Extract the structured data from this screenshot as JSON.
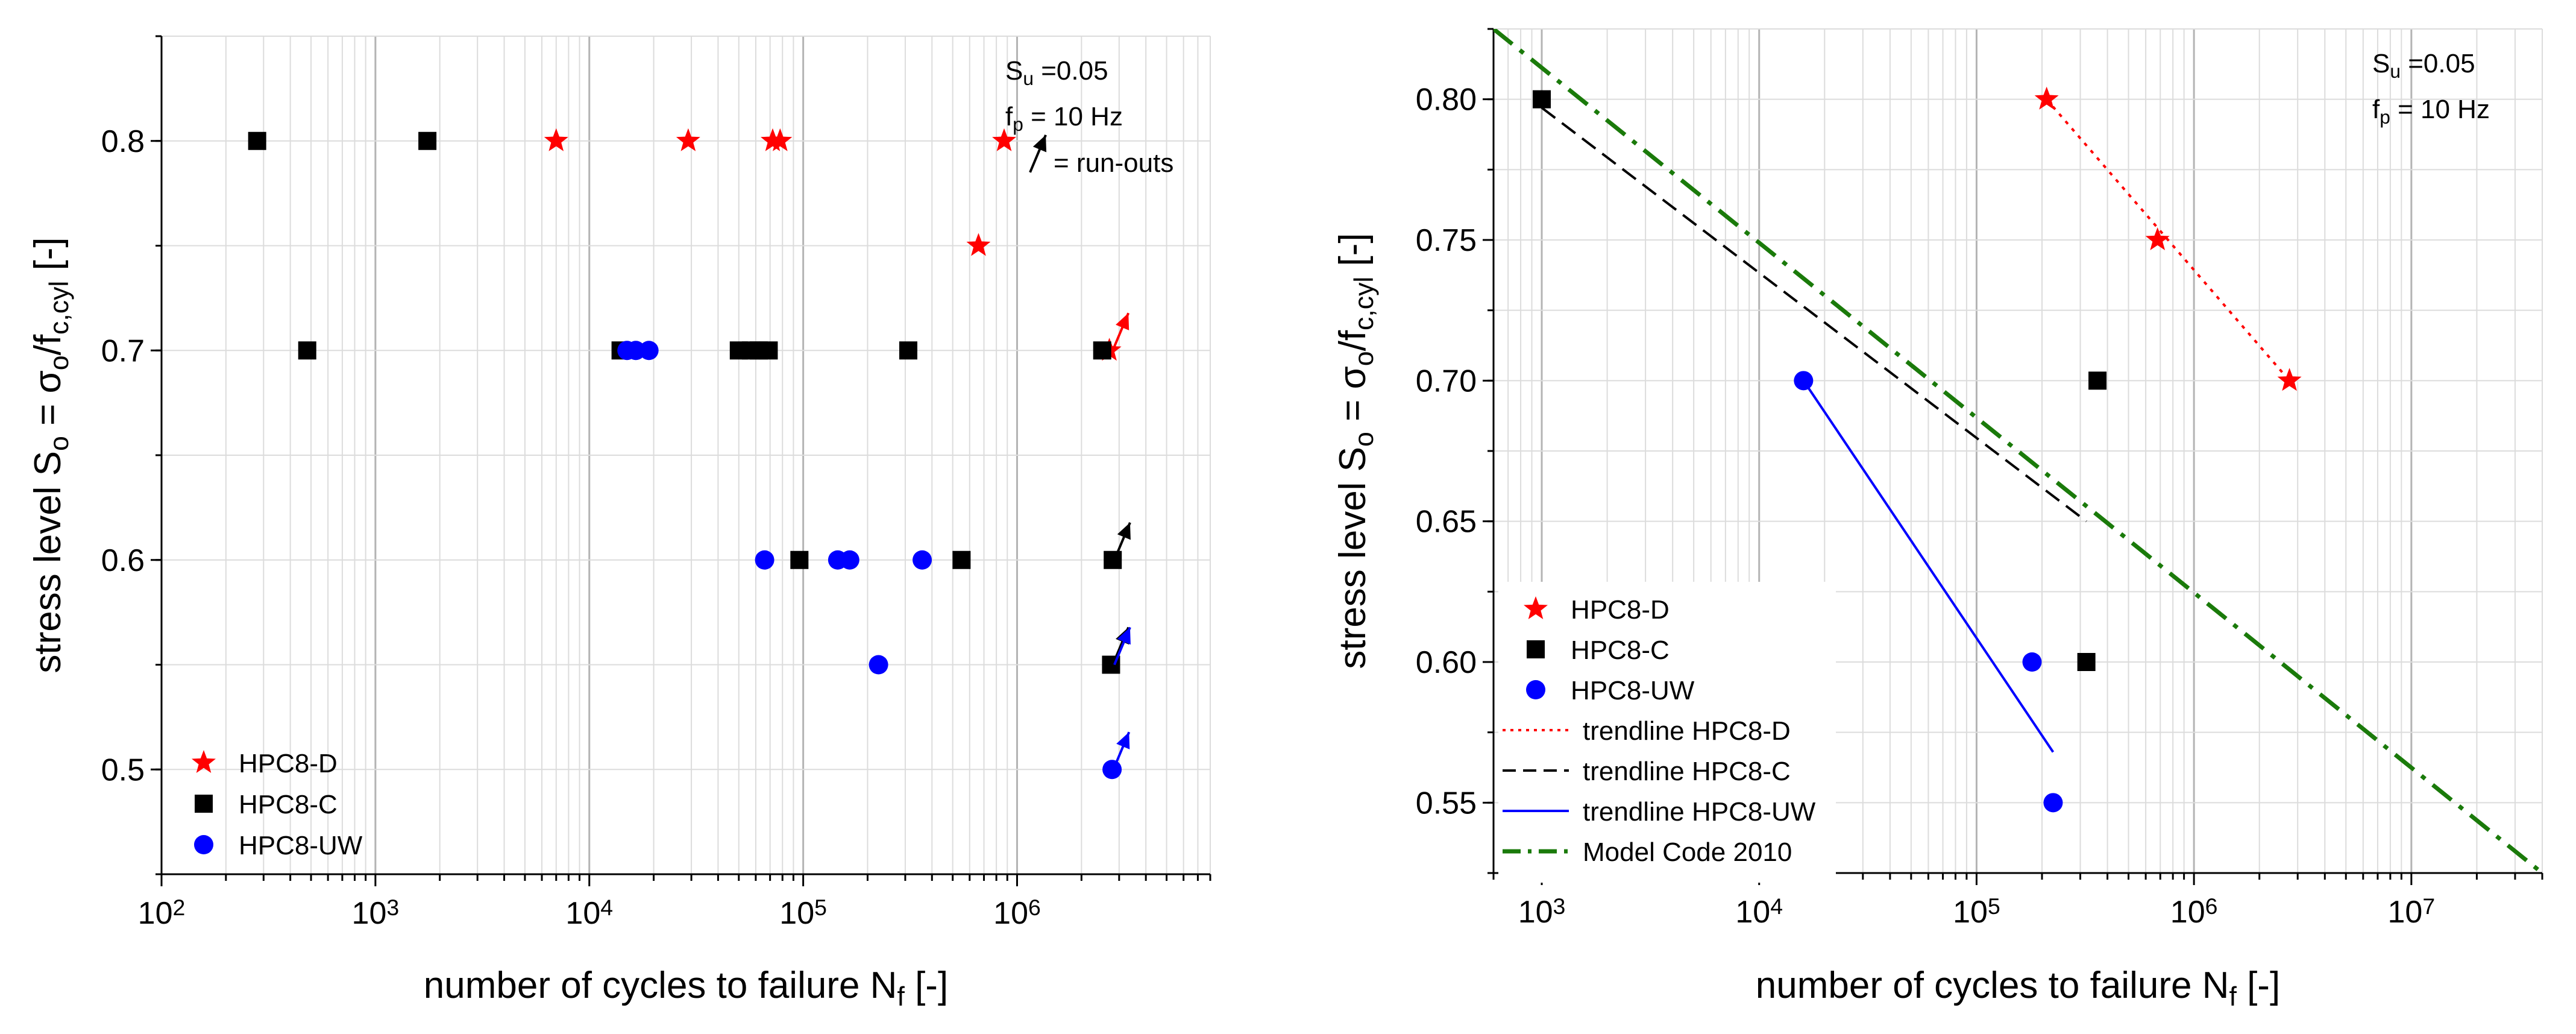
{
  "colors": {
    "hpc8d": "#ff0000",
    "hpc8c": "#000000",
    "hpc8uw": "#0000ff",
    "modelcode": "#1a7a0a",
    "grid_major": "#b4b4b4",
    "grid_minor": "#dcdcdc",
    "axis": "#000000"
  },
  "chart_data": [
    {
      "type": "scatter",
      "title": "",
      "xlabel": "number of cycles to failure N",
      "xlabel_sub": "f",
      "xlabel_suffix": " [-]",
      "ylabel": "stress level S",
      "ylabel_sub1": "o",
      "ylabel_mid": " = σ",
      "ylabel_sub2": "o",
      "ylabel_mid2": "/f",
      "ylabel_sub3": "c,cyl",
      "ylabel_suffix": " [-]",
      "xscale": "log",
      "xlim": [
        100,
        8000000
      ],
      "ylim": [
        0.45,
        0.85
      ],
      "yticks": [
        0.5,
        0.6,
        0.7,
        0.8
      ],
      "ytick_labels": [
        "0.5",
        "0.6",
        "0.7",
        "0.8"
      ],
      "xticks": [
        100,
        1000,
        10000,
        100000,
        1000000
      ],
      "xtick_base": "10",
      "xtick_exponents": [
        "2",
        "3",
        "4",
        "5",
        "6"
      ],
      "grid": true,
      "annotations": {
        "su_label": "S",
        "su_sub": "u",
        "su_value": " =0.05",
        "fp_label": "f",
        "fp_sub": "p",
        "fp_value": " = 10 Hz",
        "runout_label": "= run-outs"
      },
      "legend": {
        "position": "bottom-left",
        "entries": [
          "HPC8-D",
          "HPC8-C",
          "HPC8-UW"
        ]
      },
      "series": [
        {
          "name": "HPC8-D",
          "marker": "star",
          "points": [
            [
              7000,
              0.8
            ],
            [
              29000,
              0.8
            ],
            [
              72000,
              0.8
            ],
            [
              78000,
              0.8
            ],
            [
              870000,
              0.8
            ],
            [
              660000,
              0.75
            ],
            [
              2700000,
              0.7
            ]
          ]
        },
        {
          "name": "HPC8-C",
          "marker": "square",
          "points": [
            [
              280,
              0.8
            ],
            [
              1750,
              0.8
            ],
            [
              480,
              0.7
            ],
            [
              14000,
              0.7
            ],
            [
              50000,
              0.7
            ],
            [
              57000,
              0.7
            ],
            [
              62000,
              0.7
            ],
            [
              69000,
              0.7
            ],
            [
              310000,
              0.7
            ],
            [
              2500000,
              0.7
            ],
            [
              96000,
              0.6
            ],
            [
              550000,
              0.6
            ],
            [
              2800000,
              0.6
            ],
            [
              2750000,
              0.55
            ]
          ]
        },
        {
          "name": "HPC8-UW",
          "marker": "circle",
          "points": [
            [
              15000,
              0.7
            ],
            [
              16500,
              0.7
            ],
            [
              19000,
              0.7
            ],
            [
              66000,
              0.6
            ],
            [
              145000,
              0.6
            ],
            [
              165000,
              0.6
            ],
            [
              360000,
              0.6
            ],
            [
              225000,
              0.55
            ],
            [
              2780000,
              0.5
            ]
          ]
        }
      ],
      "runouts": [
        {
          "x": 1150000,
          "y": 0.785,
          "color_key": "hpc8c",
          "is_legend": true
        },
        {
          "x": 2800000,
          "y": 0.7,
          "color_key": "hpc8d"
        },
        {
          "x": 2850000,
          "y": 0.6,
          "color_key": "hpc8c"
        },
        {
          "x": 2800000,
          "y": 0.55,
          "color_key": "hpc8c"
        },
        {
          "x": 2850000,
          "y": 0.55,
          "color_key": "hpc8uw"
        },
        {
          "x": 2820000,
          "y": 0.5,
          "color_key": "hpc8uw"
        }
      ]
    },
    {
      "type": "scatter",
      "title": "",
      "xlabel": "number of cycles to failure N",
      "xlabel_sub": "f",
      "xlabel_suffix": " [-]",
      "ylabel": "stress level S",
      "ylabel_sub1": "o",
      "ylabel_mid": " = σ",
      "ylabel_sub2": "o",
      "ylabel_mid2": "/f",
      "ylabel_sub3": "c,cyl",
      "ylabel_suffix": " [-]",
      "xscale": "log",
      "xlim": [
        600,
        40000000
      ],
      "ylim": [
        0.525,
        0.825
      ],
      "yticks": [
        0.55,
        0.6,
        0.65,
        0.7,
        0.75,
        0.8
      ],
      "ytick_labels": [
        "0.55",
        "0.60",
        "0.65",
        "0.70",
        "0.75",
        "0.80"
      ],
      "xticks": [
        1000,
        10000,
        100000,
        1000000,
        10000000
      ],
      "xtick_base": "10",
      "xtick_exponents": [
        "3",
        "4",
        "5",
        "6",
        "7"
      ],
      "grid": true,
      "annotations": {
        "su_label": "S",
        "su_sub": "u",
        "su_value": " =0.05",
        "fp_label": "f",
        "fp_sub": "p",
        "fp_value": " = 10 Hz"
      },
      "legend": {
        "position": "bottom-left",
        "entries": [
          "HPC8-D",
          "HPC8-C",
          "HPC8-UW",
          "trendline HPC8-D",
          "trendline HPC8-C",
          "trendline HPC8-UW",
          "Model Code 2010"
        ]
      },
      "series": [
        {
          "name": "HPC8-D",
          "marker": "star",
          "points": [
            [
              210000,
              0.8
            ],
            [
              680000,
              0.75
            ],
            [
              2750000,
              0.7
            ]
          ]
        },
        {
          "name": "HPC8-C",
          "marker": "square",
          "points": [
            [
              1000,
              0.8
            ],
            [
              360000,
              0.7
            ],
            [
              320000,
              0.6
            ]
          ]
        },
        {
          "name": "HPC8-UW",
          "marker": "circle",
          "points": [
            [
              16000,
              0.7
            ],
            [
              180000,
              0.6
            ],
            [
              225000,
              0.55
            ]
          ]
        }
      ],
      "trendlines": [
        {
          "name": "trendline HPC8-D",
          "style": "dotted",
          "color_key": "hpc8d",
          "from": [
            210000,
            0.8
          ],
          "to": [
            2750000,
            0.7
          ]
        },
        {
          "name": "trendline HPC8-C",
          "style": "dashed",
          "color_key": "hpc8c",
          "from": [
            1000,
            0.797
          ],
          "to": [
            320000,
            0.65
          ]
        },
        {
          "name": "trendline HPC8-UW",
          "style": "solid",
          "color_key": "hpc8uw",
          "from": [
            16000,
            0.7
          ],
          "to": [
            225000,
            0.568
          ]
        },
        {
          "name": "Model Code 2010",
          "style": "dashdot",
          "color_key": "modelcode",
          "from": [
            600,
            0.825
          ],
          "to": [
            40000000,
            0.525
          ]
        }
      ]
    }
  ]
}
